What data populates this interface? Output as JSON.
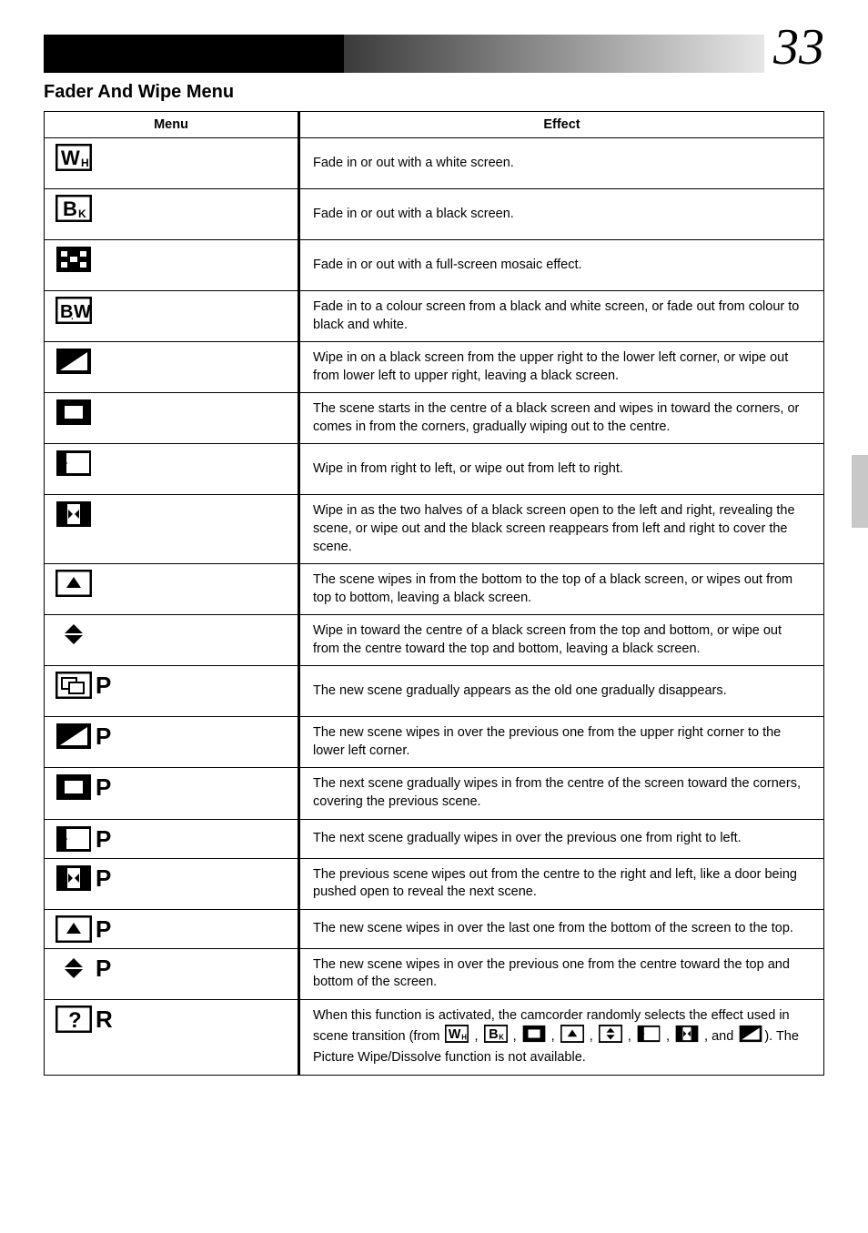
{
  "page_number": "33",
  "section_title": "Fader And Wipe Menu",
  "table": {
    "headers": {
      "menu": "Menu",
      "effect": "Effect"
    },
    "rows": [
      {
        "icon": "wh",
        "P": false,
        "effect": "Fade in or out with a white screen."
      },
      {
        "icon": "bk",
        "P": false,
        "effect": "Fade in or out with a black screen."
      },
      {
        "icon": "mosaic",
        "P": false,
        "effect": "Fade in or out with a full-screen mosaic effect."
      },
      {
        "icon": "bw",
        "P": false,
        "effect": "Fade in to a colour screen from a black and white screen, or fade out from colour to black and white."
      },
      {
        "icon": "diag",
        "P": false,
        "effect": "Wipe in on a black screen from the upper right to the lower left corner, or wipe out from lower left to upper right, leaving a black screen."
      },
      {
        "icon": "centre",
        "P": false,
        "effect": "The scene starts in the centre of a black screen and wipes in toward the corners, or comes in from the corners, gradually wiping out to the centre."
      },
      {
        "icon": "leftwipe",
        "P": false,
        "effect": "Wipe in from right to left, or wipe out from left to right."
      },
      {
        "icon": "splitlr",
        "P": false,
        "effect": "Wipe in as the two halves of a black screen open to the left and right, revealing the scene, or wipe out and the black screen reappears from left and right to cover the scene."
      },
      {
        "icon": "up",
        "P": false,
        "effect": "The scene wipes in from the bottom to the top of a black screen, or wipes out from top to bottom, leaving a black screen."
      },
      {
        "icon": "updown",
        "P": false,
        "effect": "Wipe in toward the centre of a black screen from the top and bottom, or wipe out from the centre toward the top and bottom, leaving a black screen."
      },
      {
        "icon": "dissolve",
        "P": true,
        "effect": "The new scene gradually appears as the old one gradually disappears."
      },
      {
        "icon": "diag",
        "P": true,
        "effect": "The new scene wipes in over the previous one from the upper right corner to the lower left corner."
      },
      {
        "icon": "centre",
        "P": true,
        "effect": "The next scene gradually wipes in from the centre of the screen toward the corners, covering the previous scene."
      },
      {
        "icon": "leftwipe",
        "P": true,
        "effect": "The next scene gradually wipes in over the previous one from right to left."
      },
      {
        "icon": "splitlr",
        "P": true,
        "effect": "The previous scene wipes out from the centre to the right and left, like a door being pushed open to reveal the next scene."
      },
      {
        "icon": "up",
        "P": true,
        "effect": "The new scene wipes in over the last one from the bottom of the screen to the top."
      },
      {
        "icon": "updown",
        "P": true,
        "effect": "The new scene wipes in over the previous one from the centre toward the top and bottom of the screen."
      }
    ],
    "random_row": {
      "icon": "question",
      "suffix": "R",
      "effect_before": "When this function is activated, the camcorder randomly selects the effect used in scene transition (from ",
      "effect_after": "). The Picture Wipe/Dissolve function is not available.",
      "icon_list": [
        "wh",
        "bk",
        "centre",
        "up",
        "updown",
        "leftwipe",
        "splitlr",
        "diag"
      ],
      "separator": " , ",
      "and": " , and "
    }
  },
  "colors": {
    "border": "#000000",
    "bg": "#ffffff",
    "side_tab": "#c8c8c8"
  }
}
